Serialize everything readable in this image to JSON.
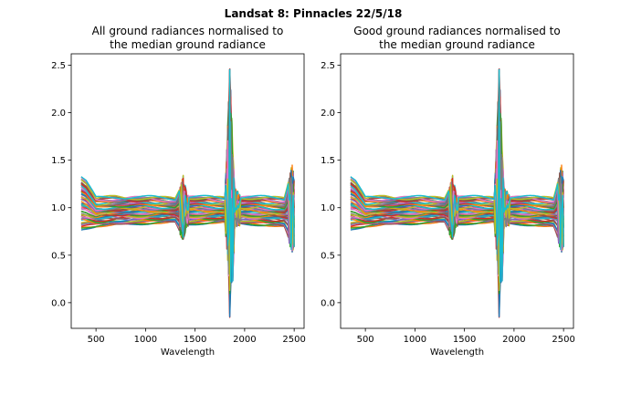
{
  "figure_title": "Landsat 8: Pinnacles 22/5/18",
  "palette": [
    "#1f77b4",
    "#ff7f0e",
    "#2ca02c",
    "#d62728",
    "#9467bd",
    "#8c564b",
    "#e377c2",
    "#7f7f7f",
    "#bcbd22",
    "#17becf"
  ],
  "chart_data": [
    {
      "type": "line",
      "title": "All ground radiances normalised to\nthe median ground radiance",
      "xlabel": "Wavelength",
      "ylabel": "",
      "xlim": [
        250,
        2600
      ],
      "ylim": [
        -0.27,
        2.62
      ],
      "xticks": [
        500,
        1000,
        1500,
        2000,
        2500
      ],
      "yticks": [
        0.0,
        0.5,
        1.0,
        1.5,
        2.0,
        2.5
      ],
      "grid": false,
      "legend": "none",
      "x_range": [
        350,
        2500
      ],
      "series_count": 60,
      "envelope": {
        "x": [
          350,
          400,
          500,
          700,
          1000,
          1300,
          1360,
          1380,
          1420,
          1800,
          1840,
          1850,
          1860,
          1880,
          1900,
          1950,
          2400,
          2480,
          2500
        ],
        "upper": [
          1.33,
          1.28,
          1.1,
          1.12,
          1.11,
          1.1,
          1.25,
          1.32,
          1.12,
          1.1,
          2.1,
          2.47,
          2.25,
          1.6,
          1.2,
          1.12,
          1.1,
          1.45,
          1.3
        ],
        "lower": [
          0.77,
          0.78,
          0.8,
          0.82,
          0.83,
          0.85,
          0.7,
          0.68,
          0.82,
          0.85,
          0.3,
          -0.13,
          0.2,
          0.25,
          0.8,
          0.83,
          0.8,
          0.55,
          0.6
        ]
      }
    },
    {
      "type": "line",
      "title": "Good ground radiances normalised to\nthe median ground radiance",
      "xlabel": "Wavelength",
      "ylabel": "",
      "xlim": [
        250,
        2600
      ],
      "ylim": [
        -0.27,
        2.62
      ],
      "xticks": [
        500,
        1000,
        1500,
        2000,
        2500
      ],
      "yticks": [
        0.0,
        0.5,
        1.0,
        1.5,
        2.0,
        2.5
      ],
      "grid": false,
      "legend": "none",
      "x_range": [
        350,
        2500
      ],
      "series_count": 60,
      "envelope": {
        "x": [
          350,
          400,
          500,
          700,
          1000,
          1300,
          1360,
          1380,
          1420,
          1800,
          1840,
          1850,
          1860,
          1880,
          1900,
          1950,
          2400,
          2480,
          2500
        ],
        "upper": [
          1.33,
          1.28,
          1.1,
          1.12,
          1.11,
          1.1,
          1.25,
          1.32,
          1.12,
          1.1,
          2.1,
          2.47,
          2.25,
          1.6,
          1.2,
          1.12,
          1.1,
          1.45,
          1.3
        ],
        "lower": [
          0.77,
          0.78,
          0.8,
          0.82,
          0.83,
          0.85,
          0.7,
          0.68,
          0.82,
          0.85,
          0.3,
          -0.13,
          0.2,
          0.25,
          0.8,
          0.83,
          0.8,
          0.55,
          0.6
        ]
      }
    }
  ]
}
